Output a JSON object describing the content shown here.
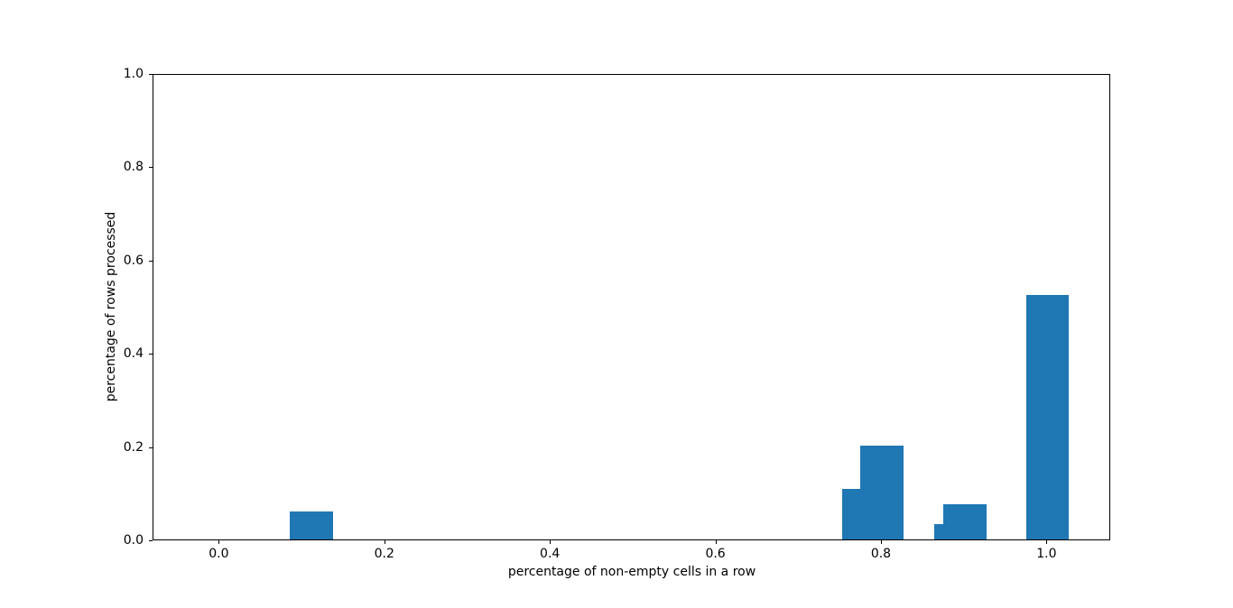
{
  "chart_data": {
    "type": "bar",
    "title": "",
    "xlabel": "percentage of non-empty cells in a row",
    "ylabel": "percentage of rows processed",
    "x": [
      0.111,
      0.778,
      0.8,
      0.889,
      0.9,
      1.0
    ],
    "values": [
      0.06,
      0.108,
      0.201,
      0.032,
      0.075,
      0.524
    ],
    "bar_width": 0.052,
    "bar_color": "#1f77b4",
    "axis_color": "#000000",
    "xlim": [
      -0.08,
      1.077
    ],
    "ylim": [
      0,
      1.0
    ],
    "x_ticks": [
      {
        "value": 0.0,
        "label": "0.0"
      },
      {
        "value": 0.2,
        "label": "0.2"
      },
      {
        "value": 0.4,
        "label": "0.4"
      },
      {
        "value": 0.6,
        "label": "0.6"
      },
      {
        "value": 0.8,
        "label": "0.8"
      },
      {
        "value": 1.0,
        "label": "1.0"
      }
    ],
    "y_ticks": [
      {
        "value": 0.0,
        "label": "0.0"
      },
      {
        "value": 0.2,
        "label": "0.2"
      },
      {
        "value": 0.4,
        "label": "0.4"
      },
      {
        "value": 0.6,
        "label": "0.6"
      },
      {
        "value": 0.8,
        "label": "0.8"
      },
      {
        "value": 1.0,
        "label": "1.0"
      }
    ],
    "grid": false,
    "legend": null
  }
}
